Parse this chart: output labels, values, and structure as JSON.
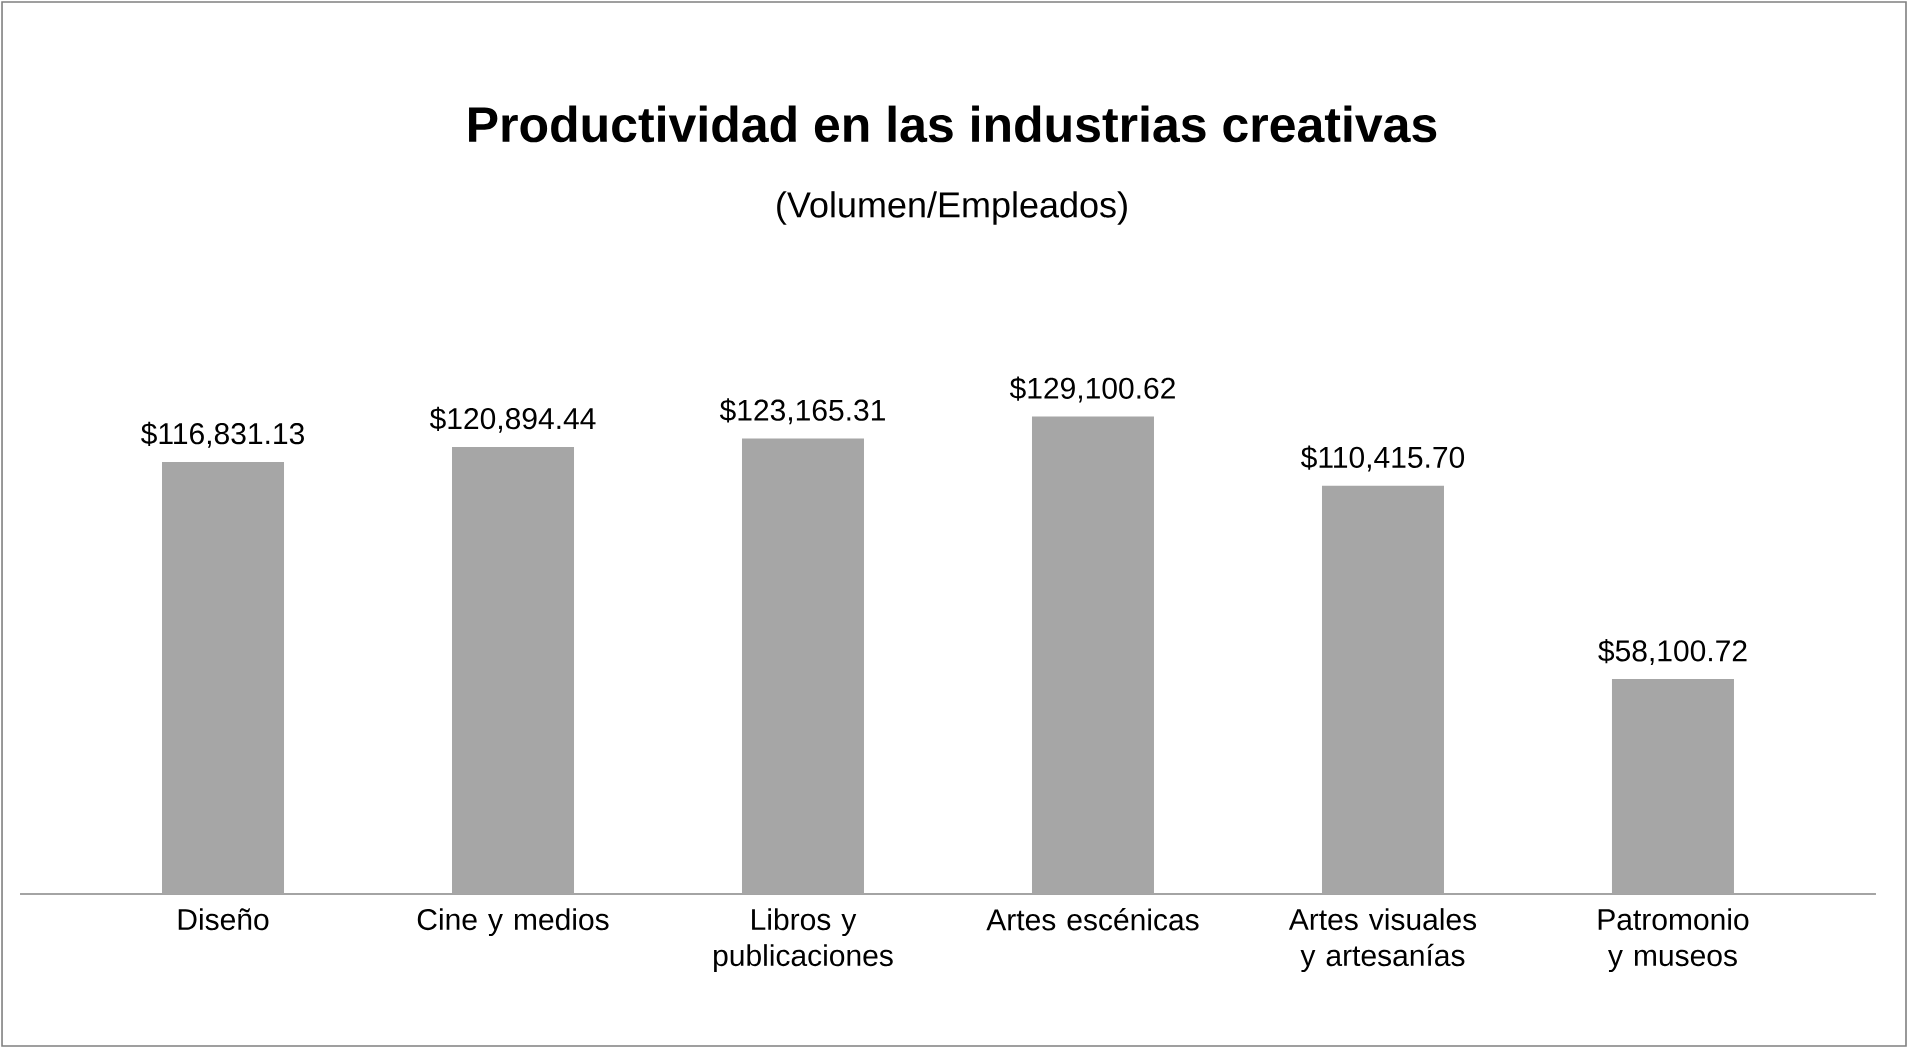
{
  "chart_data": {
    "type": "bar",
    "title": "Productividad en las industrias creativas",
    "subtitle": "(Volumen/Empleados)",
    "categories": [
      "Diseño",
      "Cine y medios",
      "Libros y publicaciones",
      "Artes escénicas",
      "Artes visuales y artesanías",
      "Patromonio y museos"
    ],
    "values": [
      116831.13,
      120894.44,
      123165.31,
      129100.62,
      110415.7,
      58100.72
    ],
    "value_labels": [
      "$116,831.13",
      "$120,894.44",
      "$123,165.31",
      "$129,100.62",
      "$110,415.70",
      "$58,100.72"
    ],
    "color": "#a6a6a6"
  }
}
